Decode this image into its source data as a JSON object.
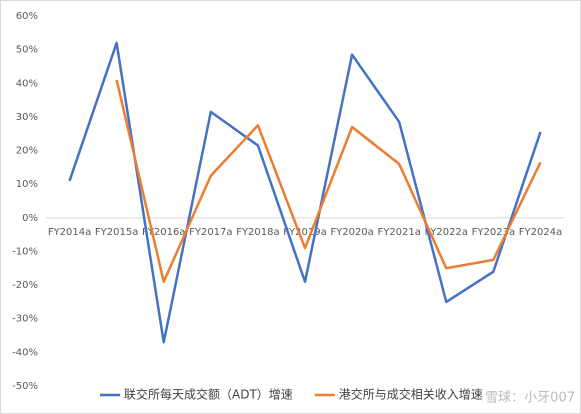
{
  "chart_data": {
    "type": "line",
    "categories": [
      "FY2014a",
      "FY2015a",
      "FY2016a",
      "FY2017a",
      "FY2018a",
      "FY2019a",
      "FY2020a",
      "FY2021a",
      "FY2022a",
      "FY2023a",
      "FY2024a"
    ],
    "series": [
      {
        "name": "联交所每天成交额（ADT）增速",
        "color": "#4472c4",
        "values": [
          11,
          52,
          -37,
          31.5,
          21.5,
          -19,
          48.5,
          28.5,
          -25,
          -16,
          25.5
        ]
      },
      {
        "name": "港交所与成交相关收入增速",
        "color": "#ed7d31",
        "values": [
          null,
          41,
          -19,
          12.5,
          27.5,
          -9,
          27,
          16,
          -15,
          -12.5,
          16.5
        ]
      }
    ],
    "ylim": [
      -50,
      60
    ],
    "yticks": [
      {
        "value": -50,
        "label": "-50%"
      },
      {
        "value": -40,
        "label": "-40%"
      },
      {
        "value": -30,
        "label": "-30%"
      },
      {
        "value": -20,
        "label": "-20%"
      },
      {
        "value": -10,
        "label": "-10%"
      },
      {
        "value": 0,
        "label": "0%"
      },
      {
        "value": 10,
        "label": "10%"
      },
      {
        "value": 20,
        "label": "20%"
      },
      {
        "value": 30,
        "label": "30%"
      },
      {
        "value": 40,
        "label": "40%"
      },
      {
        "value": 50,
        "label": "50%"
      },
      {
        "value": 60,
        "label": "60%"
      }
    ],
    "watermark": "雪球：小牙007"
  }
}
